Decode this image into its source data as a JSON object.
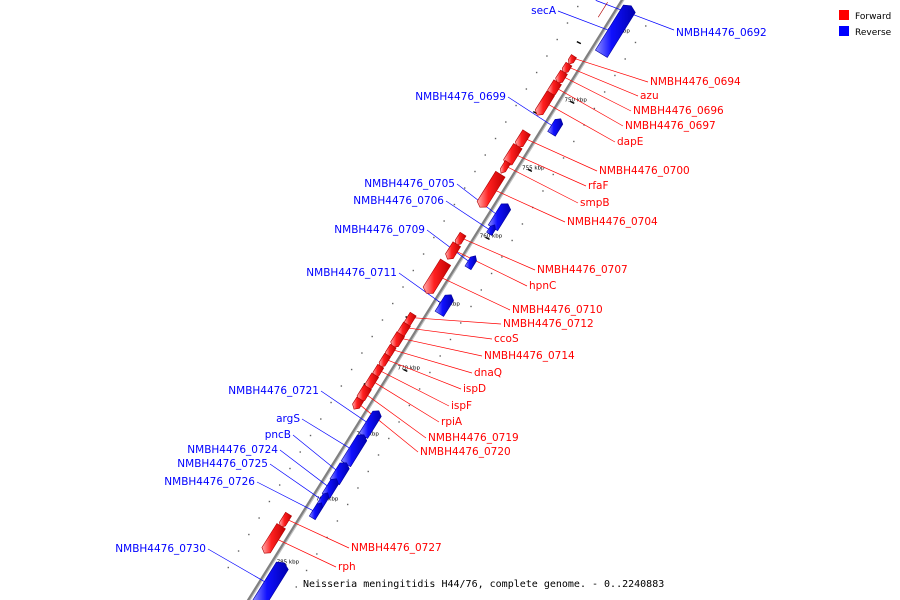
{
  "caption": "Neisseria meningitidis H44/76, complete genome. - 0..2240883",
  "legend": [
    {
      "label": "Forward",
      "color": "#ff0000"
    },
    {
      "label": "Reverse",
      "color": "#0000ff"
    }
  ],
  "ticks": [
    "745 kbp",
    "750 kbp",
    "755 kbp",
    "760 kbp",
    "765 kbp",
    "770 kbp",
    "775 kbp",
    "780 kbp",
    "785 kbp"
  ],
  "forward_genes": [
    "NMBH4476_0694",
    "azu",
    "NMBH4476_0696",
    "NMBH4476_0697",
    "dapE",
    "NMBH4476_0700",
    "rfaF",
    "smpB",
    "NMBH4476_0704",
    "NMBH4476_0707",
    "hpnC",
    "NMBH4476_0710",
    "NMBH4476_0712",
    "ccoS",
    "NMBH4476_0714",
    "dnaQ",
    "ispD",
    "ispF",
    "rpiA",
    "NMBH4476_0719",
    "NMBH4476_0720",
    "NMBH4476_0727",
    "rph"
  ],
  "reverse_genes": [
    "secA",
    "NMBH4476_0692",
    "NMBH4476_0699",
    "NMBH4476_0705",
    "NMBH4476_0706",
    "NMBH4476_0709",
    "NMBH4476_0711",
    "NMBH4476_0721",
    "argS",
    "pncB",
    "NMBH4476_0724",
    "NMBH4476_0725",
    "NMBH4476_0726",
    "NMBH4476_0730"
  ],
  "colors": {
    "forward": "#ff0000",
    "reverse": "#0000ff",
    "backbone": "#808080"
  }
}
